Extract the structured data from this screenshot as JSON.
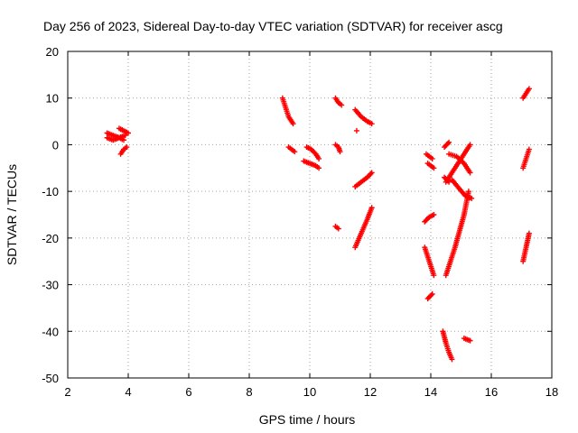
{
  "chart_data": {
    "type": "scatter",
    "title": "Day 256 of 2023, Sidereal Day-to-day VTEC variation (SDTVAR) for receiver ascg",
    "xlabel": "GPS time / hours",
    "ylabel": "SDTVAR / TECUs",
    "xlim": [
      2,
      18
    ],
    "ylim": [
      -50,
      20
    ],
    "xticks": [
      2,
      4,
      6,
      8,
      10,
      12,
      14,
      16,
      18
    ],
    "yticks": [
      -50,
      -40,
      -30,
      -20,
      -10,
      0,
      10,
      20
    ],
    "grid": true,
    "marker": "plus",
    "color": "#ff0000",
    "segments": [
      {
        "x": [
          3.3,
          3.5,
          3.7,
          3.85
        ],
        "y": [
          2.5,
          2.0,
          1.5,
          1.0
        ]
      },
      {
        "x": [
          3.3,
          3.5,
          3.7,
          3.9
        ],
        "y": [
          1.5,
          1.0,
          1.5,
          2.0
        ]
      },
      {
        "x": [
          3.7,
          3.85,
          4.0
        ],
        "y": [
          3.5,
          3.0,
          2.5
        ]
      },
      {
        "x": [
          3.75,
          3.85,
          3.95
        ],
        "y": [
          -2.0,
          -1.0,
          -0.5
        ]
      },
      {
        "x": [
          9.1,
          9.2,
          9.3,
          9.45
        ],
        "y": [
          10.0,
          8.0,
          6.0,
          4.5
        ]
      },
      {
        "x": [
          9.3,
          9.5
        ],
        "y": [
          -0.5,
          -1.5
        ]
      },
      {
        "x": [
          9.9,
          10.05,
          10.2,
          10.3
        ],
        "y": [
          -0.5,
          -1.0,
          -2.0,
          -3.0
        ]
      },
      {
        "x": [
          9.8,
          10.0,
          10.2,
          10.3
        ],
        "y": [
          -3.5,
          -4.0,
          -4.5,
          -5.0
        ]
      },
      {
        "x": [
          10.85,
          10.95,
          11.05
        ],
        "y": [
          10.0,
          9.0,
          8.5
        ]
      },
      {
        "x": [
          10.85,
          10.95,
          11.0
        ],
        "y": [
          0.0,
          -0.5,
          -1.5
        ]
      },
      {
        "x": [
          10.85,
          10.95
        ],
        "y": [
          -17.5,
          -18.0
        ]
      },
      {
        "x": [
          11.5,
          11.7,
          11.9,
          12.05
        ],
        "y": [
          7.5,
          6.0,
          5.0,
          4.5
        ]
      },
      {
        "x": [
          11.55
        ],
        "y": [
          3.0
        ]
      },
      {
        "x": [
          11.5,
          11.7,
          11.9,
          12.05
        ],
        "y": [
          -9.0,
          -8.0,
          -7.0,
          -6.0
        ]
      },
      {
        "x": [
          11.5,
          11.7,
          11.9,
          12.05
        ],
        "y": [
          -22.0,
          -19.0,
          -16.0,
          -13.5
        ]
      },
      {
        "x": [
          13.85,
          13.95,
          14.05
        ],
        "y": [
          -2.0,
          -2.5,
          -3.0
        ]
      },
      {
        "x": [
          13.9,
          14.0,
          14.1
        ],
        "y": [
          -4.0,
          -4.5,
          -5.0
        ]
      },
      {
        "x": [
          13.8,
          13.95,
          14.1
        ],
        "y": [
          -16.5,
          -15.5,
          -15.0
        ]
      },
      {
        "x": [
          13.8,
          13.95,
          14.1
        ],
        "y": [
          -22.0,
          -25.0,
          -28.0
        ]
      },
      {
        "x": [
          13.9,
          14.05
        ],
        "y": [
          -33.0,
          -32.0
        ]
      },
      {
        "x": [
          14.4,
          14.5,
          14.6,
          14.7
        ],
        "y": [
          -40.0,
          -42.5,
          -44.5,
          -46.0
        ]
      },
      {
        "x": [
          15.1,
          15.3
        ],
        "y": [
          -41.5,
          -42.0
        ]
      },
      {
        "x": [
          14.45,
          14.6
        ],
        "y": [
          -0.5,
          0.5
        ]
      },
      {
        "x": [
          14.45,
          14.6
        ],
        "y": [
          -7.0,
          -8.0
        ]
      },
      {
        "x": [
          14.5,
          14.8,
          15.1,
          15.3
        ],
        "y": [
          -8.0,
          -5.0,
          -2.0,
          0.0
        ]
      },
      {
        "x": [
          14.6,
          14.85,
          15.1,
          15.3
        ],
        "y": [
          -2.0,
          -2.5,
          -4.0,
          -6.0
        ]
      },
      {
        "x": [
          14.5,
          14.8,
          15.1,
          15.25
        ],
        "y": [
          -28.0,
          -22.0,
          -15.0,
          -10.0
        ]
      },
      {
        "x": [
          14.7,
          14.95,
          15.15,
          15.35
        ],
        "y": [
          -7.5,
          -9.5,
          -11.0,
          -11.5
        ]
      },
      {
        "x": [
          17.05,
          17.15,
          17.25
        ],
        "y": [
          10.0,
          11.0,
          12.0
        ]
      },
      {
        "x": [
          17.05,
          17.15,
          17.25
        ],
        "y": [
          -5.0,
          -3.0,
          -1.0
        ]
      },
      {
        "x": [
          17.05,
          17.15,
          17.25
        ],
        "y": [
          -25.0,
          -22.0,
          -19.0
        ]
      }
    ]
  }
}
